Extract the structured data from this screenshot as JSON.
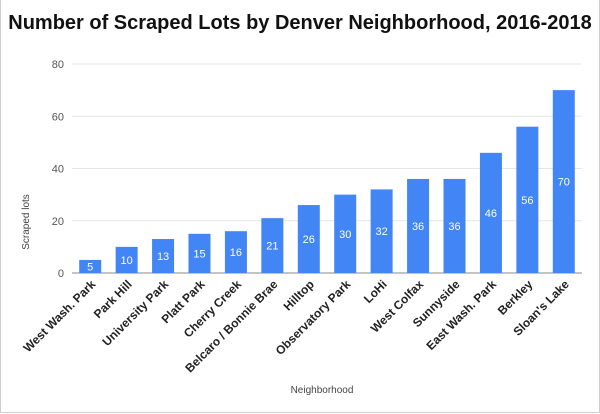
{
  "chart_data": {
    "type": "bar",
    "title": "Number of Scraped Lots by Denver Neighborhood, 2016-2018",
    "xlabel": "Neighborhood",
    "ylabel": "Scraped lots",
    "ylim": [
      0,
      80
    ],
    "yticks": [
      0,
      20,
      40,
      60,
      80
    ],
    "grid": true,
    "categories": [
      "West Wash. Park",
      "Park Hill",
      "University Park",
      "Platt Park",
      "Cherry Creek",
      "Belcaro / Bonnie Brae",
      "Hilltop",
      "Observatory Park",
      "LoHi",
      "West Colfax",
      "Sunnyside",
      "East Wash. Park",
      "Berkley",
      "Sloan's Lake"
    ],
    "values": [
      5,
      10,
      13,
      15,
      16,
      21,
      26,
      30,
      32,
      36,
      36,
      46,
      56,
      70
    ],
    "bar_color": "#4285f4"
  }
}
